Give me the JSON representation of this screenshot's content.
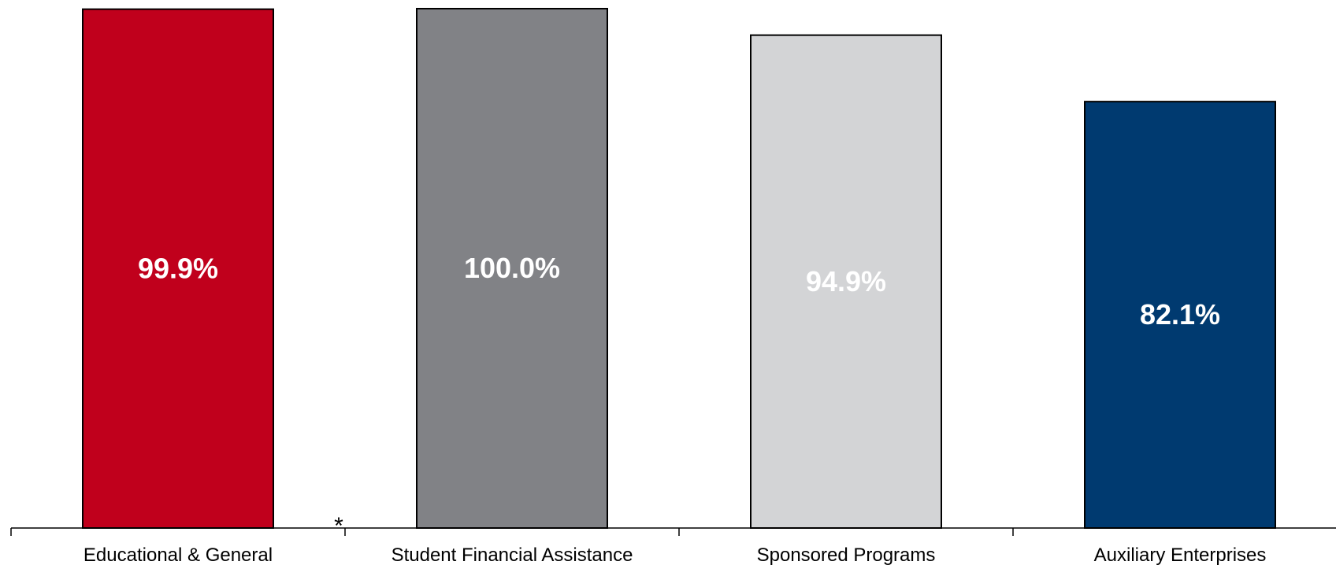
{
  "chart_data": {
    "type": "bar",
    "categories": [
      "Educational & General",
      "Student Financial Assistance",
      "Sponsored Programs",
      "Auxiliary Enterprises"
    ],
    "values": [
      99.9,
      100.0,
      94.9,
      82.1
    ],
    "data_labels": [
      "99.9%",
      "100.0%",
      "94.9%",
      "82.1%"
    ],
    "title": "",
    "xlabel": "",
    "ylabel": "",
    "ylim": [
      0,
      100
    ],
    "grid": false,
    "bar_colors": [
      "#c0001c",
      "#818286",
      "#d3d4d6",
      "#003a70"
    ],
    "label_colors": [
      "#ffffff",
      "#ffffff",
      "#ffffff",
      "#ffffff"
    ],
    "annotation": "*"
  }
}
